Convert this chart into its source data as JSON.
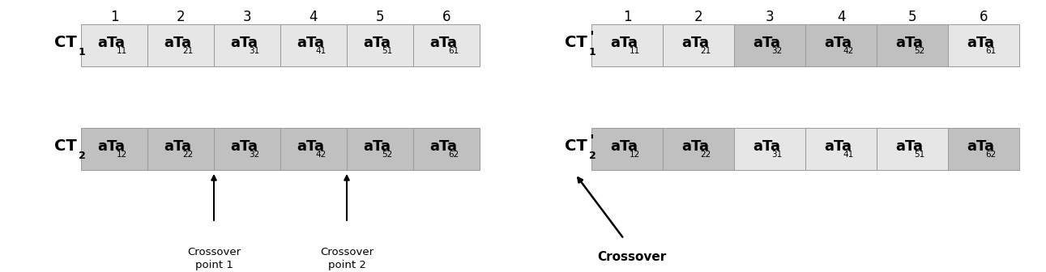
{
  "bg_color": "#ffffff",
  "light_gray": "#e6e6e6",
  "dark_gray": "#c0c0c0",
  "col_labels": [
    "1",
    "2",
    "3",
    "4",
    "5",
    "6"
  ],
  "left_cells1": [
    [
      "aTa",
      "11"
    ],
    [
      "aTa",
      "21"
    ],
    [
      "aTa",
      "31"
    ],
    [
      "aTa",
      "41"
    ],
    [
      "aTa",
      "51"
    ],
    [
      "aTa",
      "61"
    ]
  ],
  "left_cells2": [
    [
      "aTa",
      "12"
    ],
    [
      "aTa",
      "22"
    ],
    [
      "aTa",
      "32"
    ],
    [
      "aTa",
      "42"
    ],
    [
      "aTa",
      "52"
    ],
    [
      "aTa",
      "62"
    ]
  ],
  "right_cells1": [
    [
      "aTa",
      "11"
    ],
    [
      "aTa",
      "21"
    ],
    [
      "aTa",
      "32"
    ],
    [
      "aTa",
      "42"
    ],
    [
      "aTa",
      "52"
    ],
    [
      "aTa",
      "61"
    ]
  ],
  "right_cells2": [
    [
      "aTa",
      "12"
    ],
    [
      "aTa",
      "22"
    ],
    [
      "aTa",
      "31"
    ],
    [
      "aTa",
      "41"
    ],
    [
      "aTa",
      "51"
    ],
    [
      "aTa",
      "62"
    ]
  ],
  "ct1_row_colors": [
    "#e6e6e6",
    "#e6e6e6",
    "#e6e6e6",
    "#e6e6e6",
    "#e6e6e6",
    "#e6e6e6"
  ],
  "ct2_row_colors": [
    "#c0c0c0",
    "#c0c0c0",
    "#c0c0c0",
    "#c0c0c0",
    "#c0c0c0",
    "#c0c0c0"
  ],
  "ct1p_row_colors": [
    "#e6e6e6",
    "#e6e6e6",
    "#c0c0c0",
    "#c0c0c0",
    "#c0c0c0",
    "#e6e6e6"
  ],
  "ct2p_row_colors": [
    "#c0c0c0",
    "#c0c0c0",
    "#e6e6e6",
    "#e6e6e6",
    "#e6e6e6",
    "#c0c0c0"
  ]
}
